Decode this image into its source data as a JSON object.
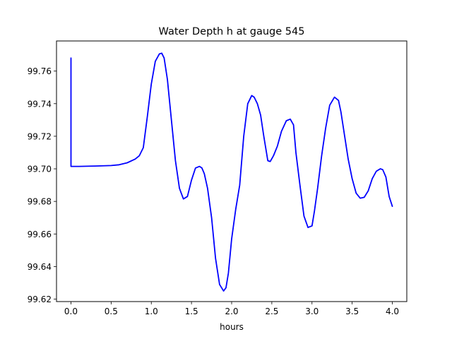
{
  "chart_data": {
    "type": "line",
    "title": "Water Depth h at gauge 545",
    "xlabel": "hours",
    "ylabel": "",
    "xlim": [
      -0.18,
      4.18
    ],
    "ylim": [
      99.6185,
      99.7785
    ],
    "x_ticks": [
      0.0,
      0.5,
      1.0,
      1.5,
      2.0,
      2.5,
      3.0,
      3.5,
      4.0
    ],
    "x_tick_labels": [
      "0.0",
      "0.5",
      "1.0",
      "1.5",
      "2.0",
      "2.5",
      "3.0",
      "3.5",
      "4.0"
    ],
    "y_ticks": [
      99.62,
      99.64,
      99.66,
      99.68,
      99.7,
      99.72,
      99.74,
      99.76
    ],
    "y_tick_labels": [
      "99.62",
      "99.64",
      "99.66",
      "99.68",
      "99.70",
      "99.72",
      "99.74",
      "99.76"
    ],
    "grid": false,
    "line_color": "#0000ff",
    "series": [
      {
        "x": [
          0.0,
          0.0,
          0.1,
          0.3,
          0.5,
          0.6,
          0.7,
          0.8,
          0.85,
          0.9,
          0.95,
          1.0,
          1.05,
          1.1,
          1.13,
          1.16,
          1.2,
          1.25,
          1.3,
          1.35,
          1.4,
          1.45,
          1.5,
          1.55,
          1.6,
          1.63,
          1.66,
          1.7,
          1.75,
          1.8,
          1.85,
          1.9,
          1.93,
          1.96,
          2.0,
          2.05,
          2.1,
          2.15,
          2.2,
          2.25,
          2.28,
          2.32,
          2.36,
          2.4,
          2.45,
          2.48,
          2.52,
          2.57,
          2.62,
          2.68,
          2.73,
          2.77,
          2.8,
          2.85,
          2.9,
          2.95,
          3.0,
          3.03,
          3.07,
          3.12,
          3.17,
          3.22,
          3.28,
          3.33,
          3.36,
          3.4,
          3.45,
          3.5,
          3.55,
          3.6,
          3.65,
          3.7,
          3.75,
          3.8,
          3.85,
          3.88,
          3.92,
          3.96,
          4.0
        ],
        "y": [
          99.768,
          99.7015,
          99.7015,
          99.7017,
          99.702,
          99.7025,
          99.7037,
          99.706,
          99.708,
          99.713,
          99.732,
          99.752,
          99.766,
          99.7705,
          99.771,
          99.768,
          99.755,
          99.73,
          99.705,
          99.688,
          99.6815,
          99.683,
          99.693,
          99.7005,
          99.7015,
          99.7005,
          99.697,
          99.688,
          99.67,
          99.645,
          99.629,
          99.625,
          99.627,
          99.636,
          99.657,
          99.675,
          99.69,
          99.72,
          99.74,
          99.745,
          99.744,
          99.74,
          99.733,
          99.72,
          99.705,
          99.7045,
          99.708,
          99.714,
          99.723,
          99.7295,
          99.7305,
          99.727,
          99.71,
          99.69,
          99.671,
          99.664,
          99.665,
          99.674,
          99.688,
          99.708,
          99.725,
          99.739,
          99.744,
          99.742,
          99.735,
          99.722,
          99.706,
          99.694,
          99.685,
          99.682,
          99.6825,
          99.6865,
          99.694,
          99.6985,
          99.7,
          99.6995,
          99.695,
          99.683,
          99.677
        ]
      }
    ]
  }
}
